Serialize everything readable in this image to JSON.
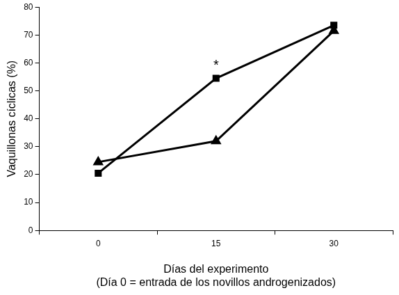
{
  "chart_data": {
    "type": "line",
    "y_label": "Vaquillonas cíclicas (%)",
    "x_label": [
      "Días del experimento",
      "(Día 0 = entrada de los novillos androgenizados)"
    ],
    "categories": [
      "0",
      "15",
      "30"
    ],
    "series": [
      {
        "color": "#000000",
        "marker": "square",
        "values": [
          20.5,
          54.5,
          73.5
        ]
      },
      {
        "color": "#000000",
        "marker": "triangle",
        "values": [
          24.5,
          32,
          71.5
        ]
      }
    ],
    "ylim": [
      0,
      80
    ],
    "yticks": [
      0,
      10,
      20,
      30,
      40,
      50,
      60,
      70,
      80
    ],
    "grid": false,
    "annotations": [
      {
        "text": "*",
        "x": "15"
      }
    ]
  }
}
